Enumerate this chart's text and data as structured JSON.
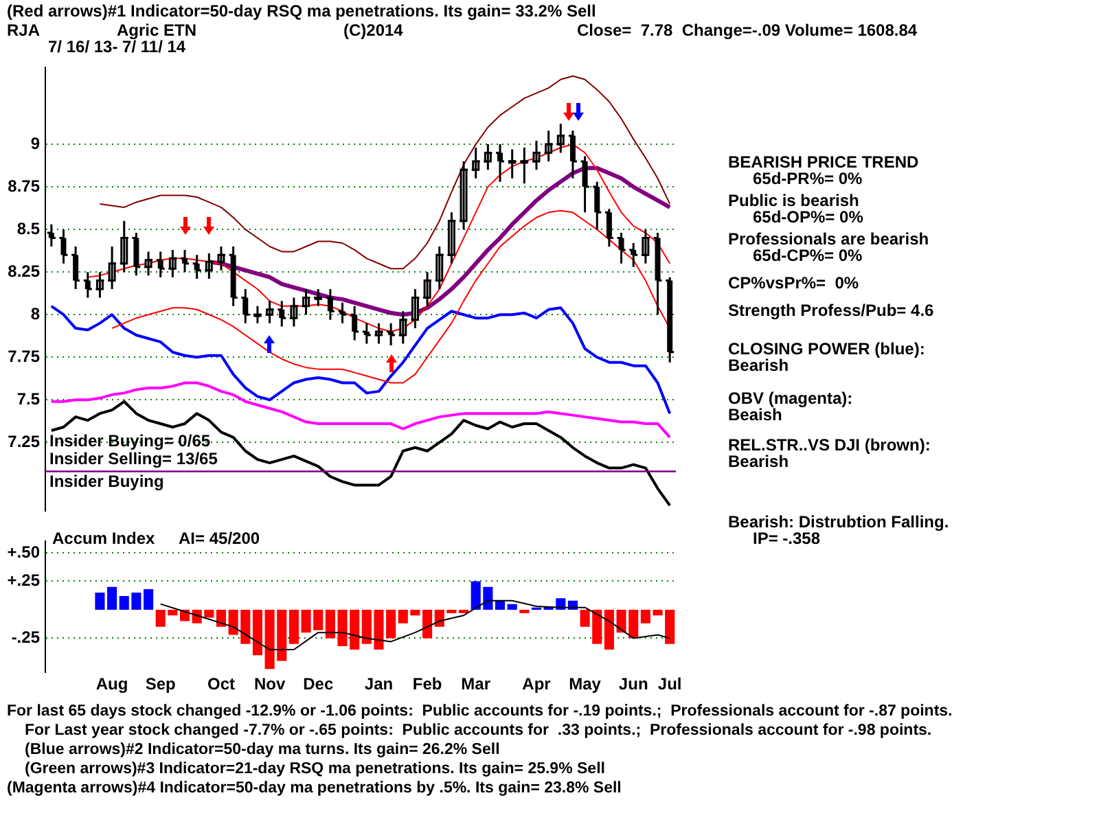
{
  "chart_data": [
    {
      "type": "candlestick",
      "title": "(Red arrows)#1 Indicator=50-day RSQ ma penetrations. Its gain= 33.2% Sell",
      "annotations": [
        "RJA",
        "Agric ETN",
        "(C)2014",
        "Close=  7.78  Change=-.09 Volume= 1608.84",
        "7/ 16/ 13- 7/ 11/ 14",
        "BEARISH PRICE TREND",
        "65d-PR%= 0%",
        "Public is bearish",
        "65d-OP%= 0%",
        "Professionals are bearish",
        "65d-CP%= 0%",
        "CP%vsPr%=  0%",
        "Strength Profess/Pub= 4.6",
        "CLOSING POWER (blue):",
        "Bearish",
        "OBV (magenta):",
        "Beaish",
        "REL.STR..VS DJI (brown):",
        "Bearish",
        "Bearish: Distrubtion Falling.",
        "IP= -.358",
        "Insider Buying= 0/65",
        "Insider Selling= 13/65",
        "For last 65 days stock changed -12.9% or -1.06 points:  Public accounts for -.19 points.;  Professionals account for -.87 points.",
        "For Last year stock changed -7.7% or -.65 points:  Public accounts for  .33 points.;  Professionals account for -.98 points.",
        "(Blue arrows)#2 Indicator=50-day ma turns. Its gain= 26.2% Sell",
        "(Green arrows)#3 Indicator=21-day RSQ ma penetrations. Its gain= 25.9% Sell",
        "(Magenta arrows)#4 Indicator=50-day ma penetrations by .5%. Its gain= 23.8% Sell"
      ],
      "categories": [
        null,
        null,
        null,
        null,
        null,
        null,
        null,
        null,
        null,
        null,
        null,
        null,
        null,
        null,
        null,
        null,
        null,
        null,
        null,
        null,
        null,
        null,
        null,
        null,
        null,
        null,
        null,
        null,
        null,
        null,
        null,
        null,
        null,
        null,
        null,
        null,
        null,
        null,
        null,
        null,
        null,
        null,
        null,
        null,
        null,
        null,
        null,
        null,
        null,
        null,
        null,
        null
      ],
      "ohlc": [
        [
          8.48,
          8.53,
          8.4,
          8.45
        ],
        [
          8.45,
          8.5,
          8.3,
          8.35
        ],
        [
          8.35,
          8.4,
          8.15,
          8.2
        ],
        [
          8.2,
          8.25,
          8.1,
          8.15
        ],
        [
          8.15,
          8.25,
          8.1,
          8.2
        ],
        [
          8.2,
          8.4,
          8.15,
          8.3
        ],
        [
          8.3,
          8.55,
          8.25,
          8.45
        ],
        [
          8.45,
          8.48,
          8.23,
          8.28
        ],
        [
          8.28,
          8.37,
          8.23,
          8.32
        ],
        [
          8.32,
          8.37,
          8.22,
          8.27
        ],
        [
          8.27,
          8.38,
          8.22,
          8.33
        ],
        [
          8.33,
          8.38,
          8.25,
          8.3
        ],
        [
          8.3,
          8.35,
          8.21,
          8.26
        ],
        [
          8.26,
          8.36,
          8.21,
          8.31
        ],
        [
          8.31,
          8.4,
          8.26,
          8.35
        ],
        [
          8.35,
          8.4,
          8.05,
          8.1
        ],
        [
          8.1,
          8.15,
          7.95,
          8.0
        ],
        [
          8.0,
          8.05,
          7.95,
          8.0
        ],
        [
          8.0,
          8.08,
          7.95,
          8.03
        ],
        [
          8.03,
          8.08,
          7.93,
          7.98
        ],
        [
          7.98,
          8.1,
          7.93,
          8.05
        ],
        [
          8.05,
          8.15,
          8.0,
          8.1
        ],
        [
          8.1,
          8.15,
          8.05,
          8.1
        ],
        [
          8.1,
          8.15,
          7.97,
          8.02
        ],
        [
          8.02,
          8.07,
          7.95,
          8.0
        ],
        [
          8.0,
          8.05,
          7.85,
          7.9
        ],
        [
          7.9,
          7.95,
          7.83,
          7.88
        ],
        [
          7.88,
          7.95,
          7.83,
          7.9
        ],
        [
          7.9,
          7.95,
          7.82,
          7.88
        ],
        [
          7.88,
          8.02,
          7.83,
          7.97
        ],
        [
          7.97,
          8.15,
          7.92,
          8.1
        ],
        [
          8.1,
          8.25,
          8.05,
          8.2
        ],
        [
          8.2,
          8.4,
          8.15,
          8.35
        ],
        [
          8.35,
          8.6,
          8.3,
          8.55
        ],
        [
          8.55,
          8.9,
          8.5,
          8.85
        ],
        [
          8.85,
          8.98,
          8.8,
          8.9
        ],
        [
          8.9,
          9.0,
          8.85,
          8.95
        ],
        [
          8.95,
          9.0,
          8.78,
          8.9
        ],
        [
          8.9,
          8.97,
          8.8,
          8.9
        ],
        [
          8.9,
          8.98,
          8.77,
          8.9
        ],
        [
          8.9,
          9.02,
          8.85,
          8.95
        ],
        [
          8.95,
          9.08,
          8.9,
          9.0
        ],
        [
          9.0,
          9.12,
          8.95,
          9.05
        ],
        [
          9.05,
          9.08,
          8.8,
          8.9
        ],
        [
          8.9,
          8.93,
          8.6,
          8.75
        ],
        [
          8.75,
          8.78,
          8.5,
          8.6
        ],
        [
          8.6,
          8.62,
          8.4,
          8.45
        ],
        [
          8.45,
          8.48,
          8.3,
          8.38
        ],
        [
          8.38,
          8.42,
          8.28,
          8.35
        ],
        [
          8.35,
          8.5,
          8.3,
          8.45
        ],
        [
          8.45,
          8.48,
          8.0,
          8.2
        ],
        [
          8.2,
          8.22,
          7.72,
          7.78
        ]
      ],
      "series": [
        {
          "type": "line",
          "color": "#800000",
          "values": [
            null,
            null,
            null,
            null,
            8.65,
            8.64,
            8.63,
            8.66,
            8.68,
            8.7,
            8.7,
            8.7,
            8.69,
            8.66,
            8.63,
            8.57,
            8.5,
            8.45,
            8.4,
            8.37,
            8.37,
            8.4,
            8.43,
            8.43,
            8.42,
            8.38,
            8.33,
            8.3,
            8.27,
            8.27,
            8.33,
            8.42,
            8.55,
            8.72,
            8.88,
            9.0,
            9.1,
            9.17,
            9.22,
            9.27,
            9.3,
            9.33,
            9.38,
            9.4,
            9.38,
            9.32,
            9.25,
            9.15,
            9.03,
            8.92,
            8.8,
            8.65
          ]
        },
        {
          "type": "line",
          "color": "#ff0000",
          "values": [
            null,
            null,
            null,
            null,
            null,
            7.92,
            7.95,
            7.98,
            8.0,
            8.02,
            8.04,
            8.04,
            8.03,
            8.0,
            7.97,
            7.93,
            7.88,
            7.83,
            7.78,
            7.74,
            7.71,
            7.69,
            7.68,
            7.68,
            7.68,
            7.66,
            7.64,
            7.62,
            7.6,
            7.6,
            7.65,
            7.75,
            7.85,
            7.95,
            8.08,
            8.2,
            8.3,
            8.4,
            8.46,
            8.52,
            8.57,
            8.6,
            8.61,
            8.6,
            8.55,
            8.5,
            8.44,
            8.38,
            8.32,
            8.2,
            8.05,
            7.92
          ]
        },
        {
          "type": "line",
          "color": "#ff0000",
          "values": [
            null,
            null,
            null,
            8.22,
            8.23,
            8.25,
            8.27,
            8.29,
            8.3,
            8.32,
            8.33,
            8.33,
            8.32,
            8.31,
            8.3,
            8.25,
            8.2,
            8.15,
            8.08,
            8.05,
            8.05,
            8.05,
            8.06,
            8.05,
            8.02,
            7.98,
            7.95,
            7.92,
            7.9,
            7.92,
            7.97,
            8.05,
            8.15,
            8.3,
            8.45,
            8.6,
            8.75,
            8.82,
            8.87,
            8.9,
            8.92,
            8.95,
            8.98,
            9.0,
            8.95,
            8.85,
            8.72,
            8.6,
            8.52,
            8.48,
            8.42,
            8.3
          ]
        },
        {
          "type": "line",
          "color": "#800080",
          "values": [
            null,
            null,
            null,
            null,
            null,
            null,
            null,
            null,
            null,
            null,
            null,
            null,
            null,
            8.31,
            8.3,
            8.28,
            8.26,
            8.24,
            8.22,
            8.18,
            8.16,
            8.14,
            8.12,
            8.1,
            8.09,
            8.07,
            8.05,
            8.03,
            8.01,
            8.0,
            8.01,
            8.04,
            8.09,
            8.15,
            8.22,
            8.3,
            8.38,
            8.45,
            8.53,
            8.6,
            8.67,
            8.73,
            8.78,
            8.83,
            8.86,
            8.86,
            8.83,
            8.8,
            8.75,
            8.71,
            8.67,
            8.63
          ]
        },
        {
          "type": "line",
          "color": "#0000ff",
          "values": [
            8.05,
            8.0,
            7.92,
            7.91,
            7.95,
            8.0,
            7.92,
            7.88,
            7.86,
            7.84,
            7.78,
            7.76,
            7.75,
            7.76,
            7.76,
            7.65,
            7.57,
            7.52,
            7.5,
            7.55,
            7.6,
            7.62,
            7.63,
            7.62,
            7.6,
            7.6,
            7.54,
            7.55,
            7.64,
            7.72,
            7.82,
            7.92,
            7.97,
            8.02,
            8.0,
            7.98,
            7.98,
            8.0,
            8.0,
            8.01,
            7.98,
            8.03,
            8.04,
            7.95,
            7.8,
            7.75,
            7.72,
            7.72,
            7.7,
            7.7,
            7.6,
            7.42
          ]
        },
        {
          "type": "line",
          "color": "#ff00ff",
          "values": [
            7.49,
            7.49,
            7.5,
            7.5,
            7.51,
            7.53,
            7.54,
            7.56,
            7.57,
            7.57,
            7.58,
            7.6,
            7.6,
            7.58,
            7.55,
            7.53,
            7.49,
            7.47,
            7.45,
            7.43,
            7.4,
            7.37,
            7.36,
            7.36,
            7.36,
            7.36,
            7.36,
            7.36,
            7.36,
            7.33,
            7.36,
            7.38,
            7.4,
            7.41,
            7.42,
            7.42,
            7.42,
            7.42,
            7.42,
            7.42,
            7.42,
            7.43,
            7.42,
            7.41,
            7.4,
            7.39,
            7.38,
            7.37,
            7.37,
            7.36,
            7.36,
            7.28
          ]
        },
        {
          "type": "line",
          "color": "#000000",
          "values": [
            7.32,
            7.34,
            7.4,
            7.38,
            7.42,
            7.44,
            7.49,
            7.42,
            7.38,
            7.36,
            7.34,
            7.36,
            7.42,
            7.38,
            7.31,
            7.28,
            7.2,
            7.15,
            7.13,
            7.15,
            7.17,
            7.14,
            7.11,
            7.05,
            7.02,
            7.0,
            7.0,
            7.0,
            7.05,
            7.2,
            7.22,
            7.2,
            7.25,
            7.3,
            7.38,
            7.35,
            7.33,
            7.37,
            7.34,
            7.36,
            7.36,
            7.32,
            7.28,
            7.22,
            7.17,
            7.13,
            7.1,
            7.1,
            7.12,
            7.1,
            6.98,
            6.88
          ]
        }
      ],
      "ylim": [
        6.85,
        9.45
      ],
      "yticks": [
        7.25,
        7.5,
        7.75,
        8,
        8.25,
        8.5,
        8.75,
        9
      ],
      "grid": "y",
      "tick_labels": "y",
      "ref_lines": [
        {
          "axis": "y",
          "value": 7.08,
          "label": "Insider Buying",
          "color": "#800080"
        }
      ]
    },
    {
      "type": "bar",
      "annotations": [
        "Accum Index",
        "AI= 45/200"
      ],
      "categories": [
        null,
        null,
        null,
        null,
        null,
        "Aug",
        null,
        null,
        null,
        "Sep",
        null,
        null,
        null,
        null,
        "Oct",
        null,
        null,
        null,
        "Nov",
        null,
        null,
        null,
        "Dec",
        null,
        null,
        null,
        null,
        "Jan",
        null,
        null,
        null,
        "Feb",
        null,
        null,
        null,
        "Mar",
        null,
        null,
        null,
        null,
        "Apr",
        null,
        null,
        null,
        "May",
        null,
        null,
        null,
        "Jun",
        null,
        null,
        "Jul"
      ],
      "series": [
        {
          "type": "bar",
          "colors": [
            "#0000ff",
            "#0000ff",
            "#0000ff",
            "#0000ff",
            "#0000ff",
            "#0000ff",
            "#0000ff",
            "#0000ff",
            "#0000ff",
            "#ff0000",
            "#ff0000",
            "#ff0000",
            "#ff0000",
            "#ff0000",
            "#ff0000",
            "#ff0000",
            "#ff0000",
            "#ff0000",
            "#ff0000",
            "#ff0000",
            "#ff0000",
            "#ff0000",
            "#ff0000",
            "#ff0000",
            "#ff0000",
            "#ff0000",
            "#ff0000",
            "#ff0000",
            "#ff0000",
            "#ff0000",
            "#ff0000",
            "#ff0000",
            "#ff0000",
            "#ff0000",
            "#ff0000",
            "#0000ff",
            "#0000ff",
            "#0000ff",
            "#0000ff",
            "#ff0000",
            "#0000ff",
            "#0000ff",
            "#0000ff",
            "#0000ff",
            "#ff0000",
            "#ff0000",
            "#ff0000",
            "#ff0000",
            "#ff0000",
            "#ff0000",
            "#ff0000",
            "#ff0000"
          ],
          "values": [
            null,
            null,
            null,
            null,
            0.15,
            0.2,
            0.12,
            0.15,
            0.18,
            -0.15,
            -0.05,
            -0.1,
            -0.12,
            -0.07,
            -0.15,
            -0.22,
            -0.3,
            -0.4,
            -0.52,
            -0.45,
            -0.3,
            -0.2,
            -0.18,
            -0.25,
            -0.32,
            -0.35,
            -0.3,
            -0.35,
            -0.25,
            -0.12,
            -0.05,
            -0.25,
            -0.15,
            -0.03,
            -0.03,
            0.25,
            0.2,
            0.08,
            0.05,
            -0.03,
            0.02,
            0.03,
            0.1,
            0.08,
            -0.15,
            -0.3,
            -0.35,
            -0.2,
            -0.25,
            -0.12,
            -0.05,
            -0.3
          ]
        },
        {
          "type": "line",
          "color": "#000000",
          "values": [
            null,
            null,
            null,
            null,
            null,
            null,
            null,
            null,
            null,
            0.05,
            null,
            null,
            -0.05,
            null,
            null,
            -0.15,
            null,
            null,
            -0.35,
            null,
            -0.35,
            null,
            -0.2,
            null,
            -0.2,
            null,
            -0.25,
            null,
            -0.28,
            null,
            -0.2,
            null,
            -0.1,
            null,
            -0.05,
            null,
            0.08,
            null,
            0.08,
            null,
            0.03,
            null,
            0.02,
            null,
            0.02,
            null,
            -0.1,
            null,
            -0.25,
            null,
            -0.22,
            -0.25
          ]
        }
      ],
      "ylim": [
        -0.55,
        0.6
      ],
      "yticks": [
        {
          "value": 0.5,
          "label": "+.50"
        },
        {
          "value": 0.25,
          "label": "+.25"
        },
        {
          "value": -0.25,
          "label": "-.25"
        }
      ],
      "grid": "y"
    }
  ]
}
